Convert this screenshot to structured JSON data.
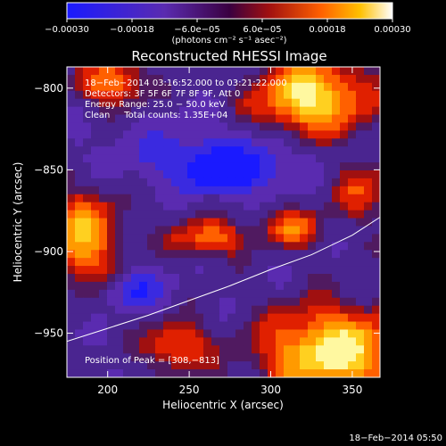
{
  "chart_data": {
    "type": "heatmap",
    "title": "Reconstructed RHESSI Image",
    "xlabel": "Heliocentric X (arcsec)",
    "ylabel": "Heliocentric Y (arcsec)",
    "xlim": [
      175,
      367
    ],
    "ylim": [
      -977,
      -787
    ],
    "x_ticks": [
      {
        "value": 200,
        "label": "200"
      },
      {
        "value": 250,
        "label": "250"
      },
      {
        "value": 300,
        "label": "300"
      },
      {
        "value": 350,
        "label": "350"
      }
    ],
    "y_ticks": [
      {
        "value": -800,
        "label": "−800"
      },
      {
        "value": -850,
        "label": "−850"
      },
      {
        "value": -900,
        "label": "−900"
      },
      {
        "value": -950,
        "label": "−950"
      }
    ],
    "colorbar": {
      "range": [
        -0.0003,
        0.0003
      ],
      "tick_labels": [
        {
          "value": -0.0003,
          "label": "−0.00030"
        },
        {
          "value": -0.00018,
          "label": "−0.00018"
        },
        {
          "value": -6e-05,
          "label": "−6.0e−05"
        },
        {
          "value": 6e-05,
          "label": "6.0e−05"
        },
        {
          "value": 0.00018,
          "label": "0.00018"
        },
        {
          "value": 0.0003,
          "label": "0.00030"
        }
      ],
      "units": "(photons cm⁻² s⁻¹ asec⁻²)"
    },
    "info_lines": [
      "18−Feb−2014 03:16:52.000 to 03:21:22.000",
      "Detectors: 3F 5F 6F 7F 8F 9F, Att 0",
      "Energy Range: 25.0 − 50.0 keV",
      "Clean     Total counts: 1.35E+04"
    ],
    "peak_annotation": "Position of Peak = [308,−813]",
    "limb_curve": [
      [
        175,
        -955
      ],
      [
        200,
        -947
      ],
      [
        225,
        -939
      ],
      [
        250,
        -930
      ],
      [
        275,
        -921
      ],
      [
        300,
        -911
      ],
      [
        325,
        -902
      ],
      [
        350,
        -890
      ],
      [
        367,
        -879
      ]
    ],
    "timestamp": "18−Feb−2014 05:50"
  },
  "colors": {
    "background": "#000000",
    "text": "#ffffff",
    "limb": "#ffffff",
    "cmap_blue": "#1a1aff",
    "cmap_purple": "#5a2bb0",
    "cmap_red": "#d01010",
    "cmap_orange": "#ff8000",
    "cmap_yellow": "#ffe040",
    "cmap_white": "#ffffff"
  }
}
